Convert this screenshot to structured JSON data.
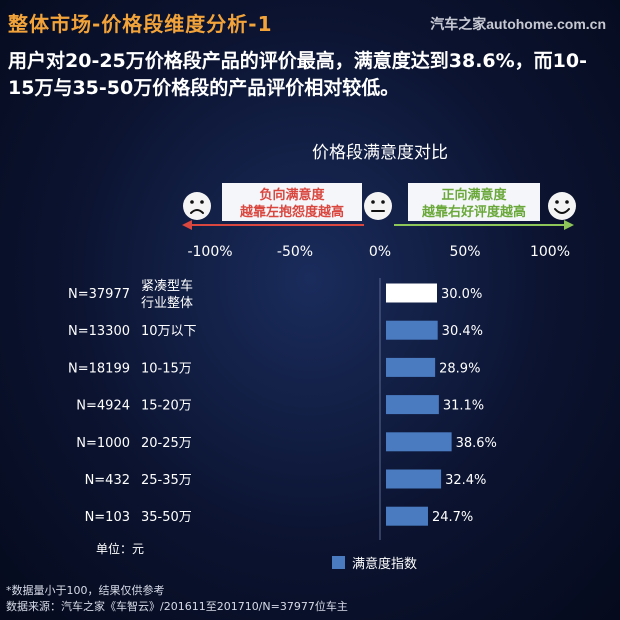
{
  "header": {
    "title": "整体市场-价格段维度分析-1",
    "watermark": "汽车之家autohome.com.cn"
  },
  "headline": "用户对20-25万价格段产品的评价最高，满意度达到38.6%，而10-15万与35-50万价格段的产品评价相对较低。",
  "chart_data": {
    "type": "bar",
    "orientation": "horizontal",
    "title": "价格段满意度对比",
    "negative_label": [
      "负向满意度",
      "越靠左抱怨度越高"
    ],
    "positive_label": [
      "正向满意度",
      "越靠右好评度越高"
    ],
    "xlim": [
      -100,
      100
    ],
    "x_ticks": [
      "-100%",
      "-50%",
      "0%",
      "50%",
      "100%"
    ],
    "categories": [
      {
        "sample": "N=37977",
        "label": [
          "紧凑型车",
          "行业整体"
        ],
        "value": 30.0,
        "value_label": "30.0%",
        "highlight": true
      },
      {
        "sample": "N=13300",
        "label": [
          "10万以下"
        ],
        "value": 30.4,
        "value_label": "30.4%"
      },
      {
        "sample": "N=18199",
        "label": [
          "10-15万"
        ],
        "value": 28.9,
        "value_label": "28.9%"
      },
      {
        "sample": "N=4924",
        "label": [
          "15-20万"
        ],
        "value": 31.1,
        "value_label": "31.1%"
      },
      {
        "sample": "N=1000",
        "label": [
          "20-25万"
        ],
        "value": 38.6,
        "value_label": "38.6%"
      },
      {
        "sample": "N=432",
        "label": [
          "25-35万"
        ],
        "value": 32.4,
        "value_label": "32.4%"
      },
      {
        "sample": "N=103",
        "label": [
          "35-50万"
        ],
        "value": 24.7,
        "value_label": "24.7%"
      }
    ],
    "series": [
      {
        "name": "满意度指数"
      }
    ],
    "unit_label": "单位：元",
    "colors": {
      "bar": "#4a7bc0",
      "highlight_bar": "#ffffff",
      "negative": "#d9473f",
      "positive": "#8ec65a",
      "label_box": "#f4f6fa"
    }
  },
  "footer": {
    "note": "*数据量小于100，结果仅供参考",
    "source": "数据来源：汽车之家《车智云》/201611至201710/N=37977位车主"
  }
}
